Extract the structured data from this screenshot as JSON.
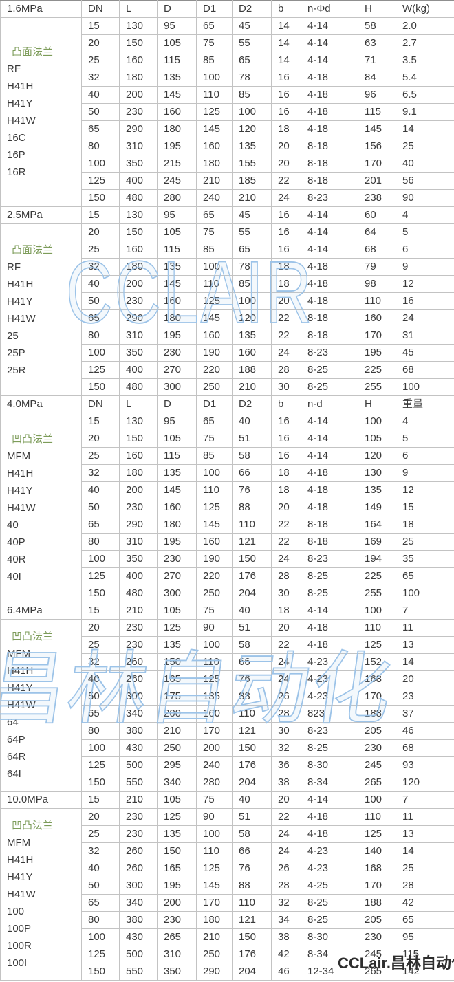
{
  "table": {
    "sections": [
      {
        "pressure": "1.6MPa",
        "header": [
          "DN",
          "L",
          "D",
          "D1",
          "D2",
          "b",
          "n-Φd",
          "H",
          "W(kg)"
        ],
        "underline_last": false,
        "flange_labels": [
          "凸面法兰",
          "RF",
          "H41H",
          "H41Y",
          "H41W",
          "16C",
          "16P",
          "16R"
        ],
        "rows": [
          [
            "15",
            "130",
            "95",
            "65",
            "45",
            "14",
            "4-14",
            "58",
            "2.0"
          ],
          [
            "20",
            "150",
            "105",
            "75",
            "55",
            "14",
            "4-14",
            "63",
            "2.7"
          ],
          [
            "25",
            "160",
            "115",
            "85",
            "65",
            "14",
            "4-14",
            "71",
            "3.5"
          ],
          [
            "32",
            "180",
            "135",
            "100",
            "78",
            "16",
            "4-18",
            "84",
            "5.4"
          ],
          [
            "40",
            "200",
            "145",
            "110",
            "85",
            "16",
            "4-18",
            "96",
            "6.5"
          ],
          [
            "50",
            "230",
            "160",
            "125",
            "100",
            "16",
            "4-18",
            "115",
            "9.1"
          ],
          [
            "65",
            "290",
            "180",
            "145",
            "120",
            "18",
            "4-18",
            "145",
            "14"
          ],
          [
            "80",
            "310",
            "195",
            "160",
            "135",
            "20",
            "8-18",
            "156",
            "25"
          ],
          [
            "100",
            "350",
            "215",
            "180",
            "155",
            "20",
            "8-18",
            "170",
            "40"
          ],
          [
            "125",
            "400",
            "245",
            "210",
            "185",
            "22",
            "8-18",
            "201",
            "56"
          ],
          [
            "150",
            "480",
            "280",
            "240",
            "210",
            "24",
            "8-23",
            "238",
            "90"
          ]
        ]
      },
      {
        "pressure": "2.5MPa",
        "header": null,
        "underline_last": false,
        "flange_labels": [
          "凸面法兰",
          "RF",
          "H41H",
          "H41Y",
          "H41W",
          "25",
          "25P",
          "25R"
        ],
        "rows": [
          [
            "15",
            "130",
            "95",
            "65",
            "45",
            "16",
            "4-14",
            "60",
            "4"
          ],
          [
            "20",
            "150",
            "105",
            "75",
            "55",
            "16",
            "4-14",
            "64",
            "5"
          ],
          [
            "25",
            "160",
            "115",
            "85",
            "65",
            "16",
            "4-14",
            "68",
            "6"
          ],
          [
            "32",
            "180",
            "135",
            "100",
            "78",
            "18",
            "4-18",
            "79",
            "9"
          ],
          [
            "40",
            "200",
            "145",
            "110",
            "85",
            "18",
            "4-18",
            "98",
            "12"
          ],
          [
            "50",
            "230",
            "160",
            "125",
            "100",
            "20",
            "4-18",
            "110",
            "16"
          ],
          [
            "65",
            "290",
            "180",
            "145",
            "120",
            "22",
            "8-18",
            "160",
            "24"
          ],
          [
            "80",
            "310",
            "195",
            "160",
            "135",
            "22",
            "8-18",
            "170",
            "31"
          ],
          [
            "100",
            "350",
            "230",
            "190",
            "160",
            "24",
            "8-23",
            "195",
            "45"
          ],
          [
            "125",
            "400",
            "270",
            "220",
            "188",
            "28",
            "8-25",
            "225",
            "68"
          ],
          [
            "150",
            "480",
            "300",
            "250",
            "210",
            "30",
            "8-25",
            "255",
            "100"
          ]
        ]
      },
      {
        "pressure": "4.0MPa",
        "header": [
          "DN",
          "L",
          "D",
          "D1",
          "D2",
          "b",
          "n-d",
          "H",
          "重量"
        ],
        "underline_last": true,
        "flange_labels": [
          "凹凸法兰",
          "MFM",
          "H41H",
          "H41Y",
          "H41W",
          "40",
          "40P",
          "40R",
          "40I"
        ],
        "rows": [
          [
            "15",
            "130",
            "95",
            "65",
            "40",
            "16",
            "4-14",
            "100",
            "4"
          ],
          [
            "20",
            "150",
            "105",
            "75",
            "51",
            "16",
            "4-14",
            "105",
            "5"
          ],
          [
            "25",
            "160",
            "115",
            "85",
            "58",
            "16",
            "4-14",
            "120",
            "6"
          ],
          [
            "32",
            "180",
            "135",
            "100",
            "66",
            "18",
            "4-18",
            "130",
            "9"
          ],
          [
            "40",
            "200",
            "145",
            "110",
            "76",
            "18",
            "4-18",
            "135",
            "12"
          ],
          [
            "50",
            "230",
            "160",
            "125",
            "88",
            "20",
            "4-18",
            "149",
            "15"
          ],
          [
            "65",
            "290",
            "180",
            "145",
            "110",
            "22",
            "8-18",
            "164",
            "18"
          ],
          [
            "80",
            "310",
            "195",
            "160",
            "121",
            "22",
            "8-18",
            "169",
            "25"
          ],
          [
            "100",
            "350",
            "230",
            "190",
            "150",
            "24",
            "8-23",
            "194",
            "35"
          ],
          [
            "125",
            "400",
            "270",
            "220",
            "176",
            "28",
            "8-25",
            "225",
            "65"
          ],
          [
            "150",
            "480",
            "300",
            "250",
            "204",
            "30",
            "8-25",
            "255",
            "100"
          ]
        ]
      },
      {
        "pressure": "6.4MPa",
        "header": null,
        "underline_last": false,
        "flange_labels": [
          "凹凸法兰",
          "MFM",
          "H41H",
          "H41Y",
          "H41W",
          "64",
          "64P",
          "64R",
          "64I"
        ],
        "rows": [
          [
            "15",
            "210",
            "105",
            "75",
            "40",
            "18",
            "4-14",
            "100",
            "7"
          ],
          [
            "20",
            "230",
            "125",
            "90",
            "51",
            "20",
            "4-18",
            "110",
            "11"
          ],
          [
            "25",
            "230",
            "135",
            "100",
            "58",
            "22",
            "4-18",
            "125",
            "13"
          ],
          [
            "32",
            "260",
            "150",
            "110",
            "66",
            "24",
            "4-23",
            "152",
            "14"
          ],
          [
            "40",
            "260",
            "165",
            "125",
            "76",
            "24",
            "4-23",
            "168",
            "20"
          ],
          [
            "50",
            "300",
            "175",
            "135",
            "88",
            "26",
            "4-23",
            "170",
            "23"
          ],
          [
            "65",
            "340",
            "200",
            "160",
            "110",
            "28",
            "823",
            "188",
            "37"
          ],
          [
            "80",
            "380",
            "210",
            "170",
            "121",
            "30",
            "8-23",
            "205",
            "46"
          ],
          [
            "100",
            "430",
            "250",
            "200",
            "150",
            "32",
            "8-25",
            "230",
            "68"
          ],
          [
            "125",
            "500",
            "295",
            "240",
            "176",
            "36",
            "8-30",
            "245",
            "93"
          ],
          [
            "150",
            "550",
            "340",
            "280",
            "204",
            "38",
            "8-34",
            "265",
            "120"
          ]
        ]
      },
      {
        "pressure": "10.0MPa",
        "header": null,
        "underline_last": false,
        "flange_labels": [
          "凹凸法兰",
          "MFM",
          "H41H",
          "H41Y",
          "H41W",
          "100",
          "100P",
          "100R",
          "100I"
        ],
        "rows": [
          [
            "15",
            "210",
            "105",
            "75",
            "40",
            "20",
            "4-14",
            "100",
            "7"
          ],
          [
            "20",
            "230",
            "125",
            "90",
            "51",
            "22",
            "4-18",
            "110",
            "11"
          ],
          [
            "25",
            "230",
            "135",
            "100",
            "58",
            "24",
            "4-18",
            "125",
            "13"
          ],
          [
            "32",
            "260",
            "150",
            "110",
            "66",
            "24",
            "4-23",
            "140",
            "14"
          ],
          [
            "40",
            "260",
            "165",
            "125",
            "76",
            "26",
            "4-23",
            "168",
            "25"
          ],
          [
            "50",
            "300",
            "195",
            "145",
            "88",
            "28",
            "4-25",
            "170",
            "28"
          ],
          [
            "65",
            "340",
            "200",
            "170",
            "110",
            "32",
            "8-25",
            "188",
            "42"
          ],
          [
            "80",
            "380",
            "230",
            "180",
            "121",
            "34",
            "8-25",
            "205",
            "65"
          ],
          [
            "100",
            "430",
            "265",
            "210",
            "150",
            "38",
            "8-30",
            "230",
            "95"
          ],
          [
            "125",
            "500",
            "310",
            "250",
            "176",
            "42",
            "8-34",
            "245",
            "115"
          ],
          [
            "150",
            "550",
            "350",
            "290",
            "204",
            "46",
            "12-34",
            "265",
            "142"
          ]
        ]
      }
    ]
  },
  "watermarks": {
    "latin_text": "CCLAIR",
    "cjk_text": "昌林自动化",
    "color": "#9cc3e8"
  },
  "footer": {
    "brand": "CCLair.昌林自动化"
  },
  "colors": {
    "flange_label_green": "#7d9c5a",
    "grid_border": "#c3c3c3",
    "section_border": "#8f8f8f",
    "text": "#3a3a3a",
    "brand_text": "#2e2e2e"
  }
}
